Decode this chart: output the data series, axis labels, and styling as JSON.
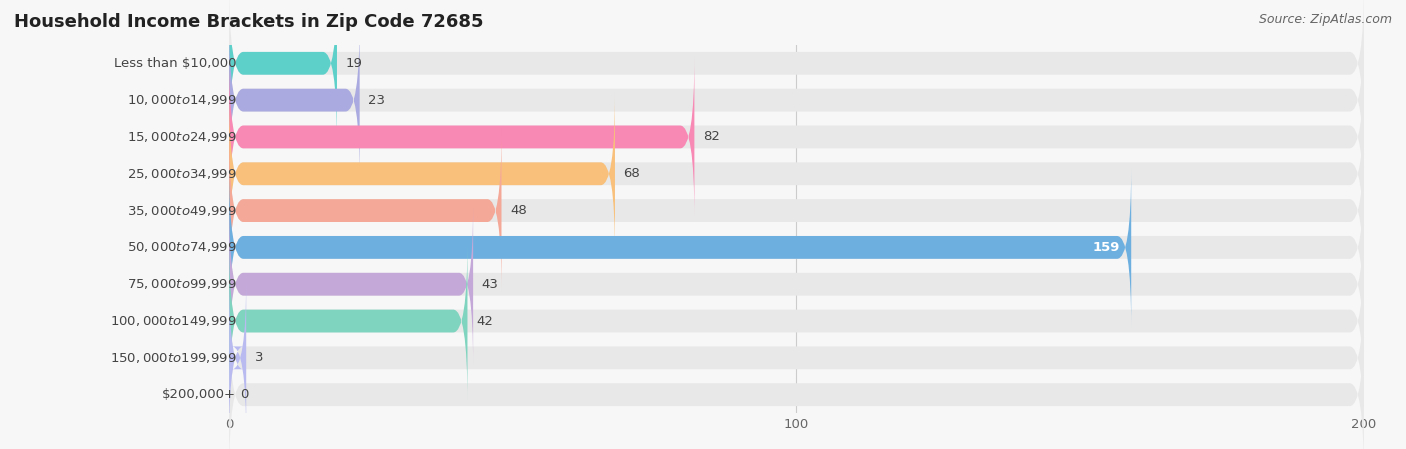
{
  "title": "Household Income Brackets in Zip Code 72685",
  "source": "Source: ZipAtlas.com",
  "categories": [
    "Less than $10,000",
    "$10,000 to $14,999",
    "$15,000 to $24,999",
    "$25,000 to $34,999",
    "$35,000 to $49,999",
    "$50,000 to $74,999",
    "$75,000 to $99,999",
    "$100,000 to $149,999",
    "$150,000 to $199,999",
    "$200,000+"
  ],
  "values": [
    19,
    23,
    82,
    68,
    48,
    159,
    43,
    42,
    3,
    0
  ],
  "bar_colors": [
    "#5dd0ca",
    "#aaaae0",
    "#f888b4",
    "#f8c07a",
    "#f4a898",
    "#6db0e0",
    "#c4a8d8",
    "#7ed4be",
    "#b8baf0",
    "#f8bac8"
  ],
  "value_inside": [
    false,
    false,
    false,
    false,
    false,
    true,
    false,
    false,
    false,
    false
  ],
  "xlim": [
    0,
    200
  ],
  "data_max": 200,
  "background_color": "#f7f7f7",
  "bar_bg_color": "#e8e8e8",
  "title_fontsize": 13,
  "label_fontsize": 9.5,
  "value_fontsize": 9.5,
  "source_fontsize": 9,
  "bar_height": 0.62,
  "bar_spacing": 1.0
}
